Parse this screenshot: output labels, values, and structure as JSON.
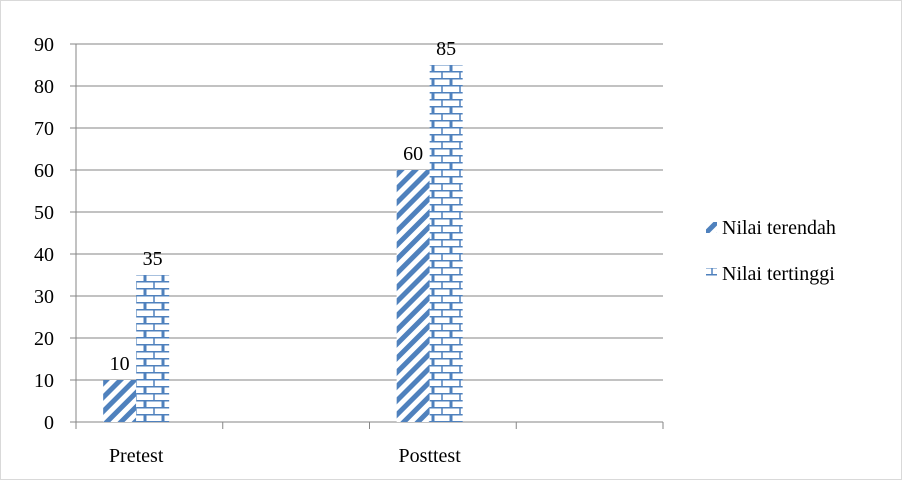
{
  "chart_data": {
    "type": "bar",
    "categories": [
      "Pretest",
      "Posttest"
    ],
    "series": [
      {
        "name": "Nilai terendah",
        "values": [
          10,
          60
        ],
        "pattern": "diagonal-stripes",
        "color": "#4f81bd"
      },
      {
        "name": "Nilai tertinggi",
        "values": [
          35,
          85
        ],
        "pattern": "brick",
        "color": "#4f81bd"
      }
    ],
    "data_labels": true,
    "ylim": [
      0,
      90
    ],
    "yticks": [
      0,
      10,
      20,
      30,
      40,
      50,
      60,
      70,
      80,
      90
    ],
    "grid": true,
    "legend": "right",
    "title": "",
    "xlabel": "",
    "ylabel": ""
  }
}
